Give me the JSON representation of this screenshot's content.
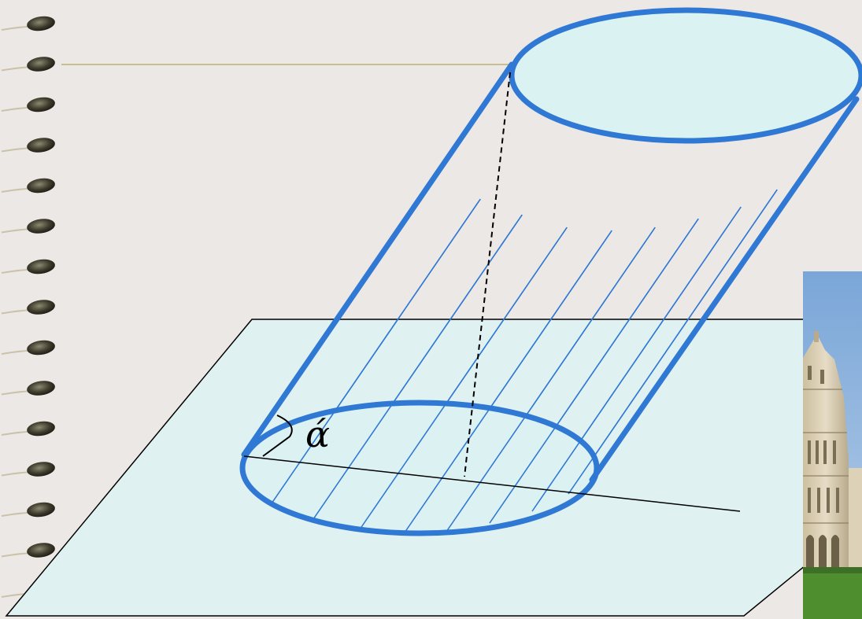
{
  "diagram": {
    "title": "",
    "angle_label": "ά"
  },
  "photo": {
    "description_visible": false,
    "subject": "leaning-tower-photo"
  },
  "colors": {
    "background": "#ece8e5",
    "plane_fill": "#dff1f1",
    "cylinder_edge": "#2f78d4",
    "hatch": "#2f78d4",
    "ellipse_fill": "#dbf2f2",
    "guide_line": "#c8bf8e",
    "sky": "#8fb4dc",
    "grass": "#4e8e2f",
    "stone": "#d8ccb3"
  },
  "icons": {
    "binding_ring": "spiral-ring-icon"
  }
}
